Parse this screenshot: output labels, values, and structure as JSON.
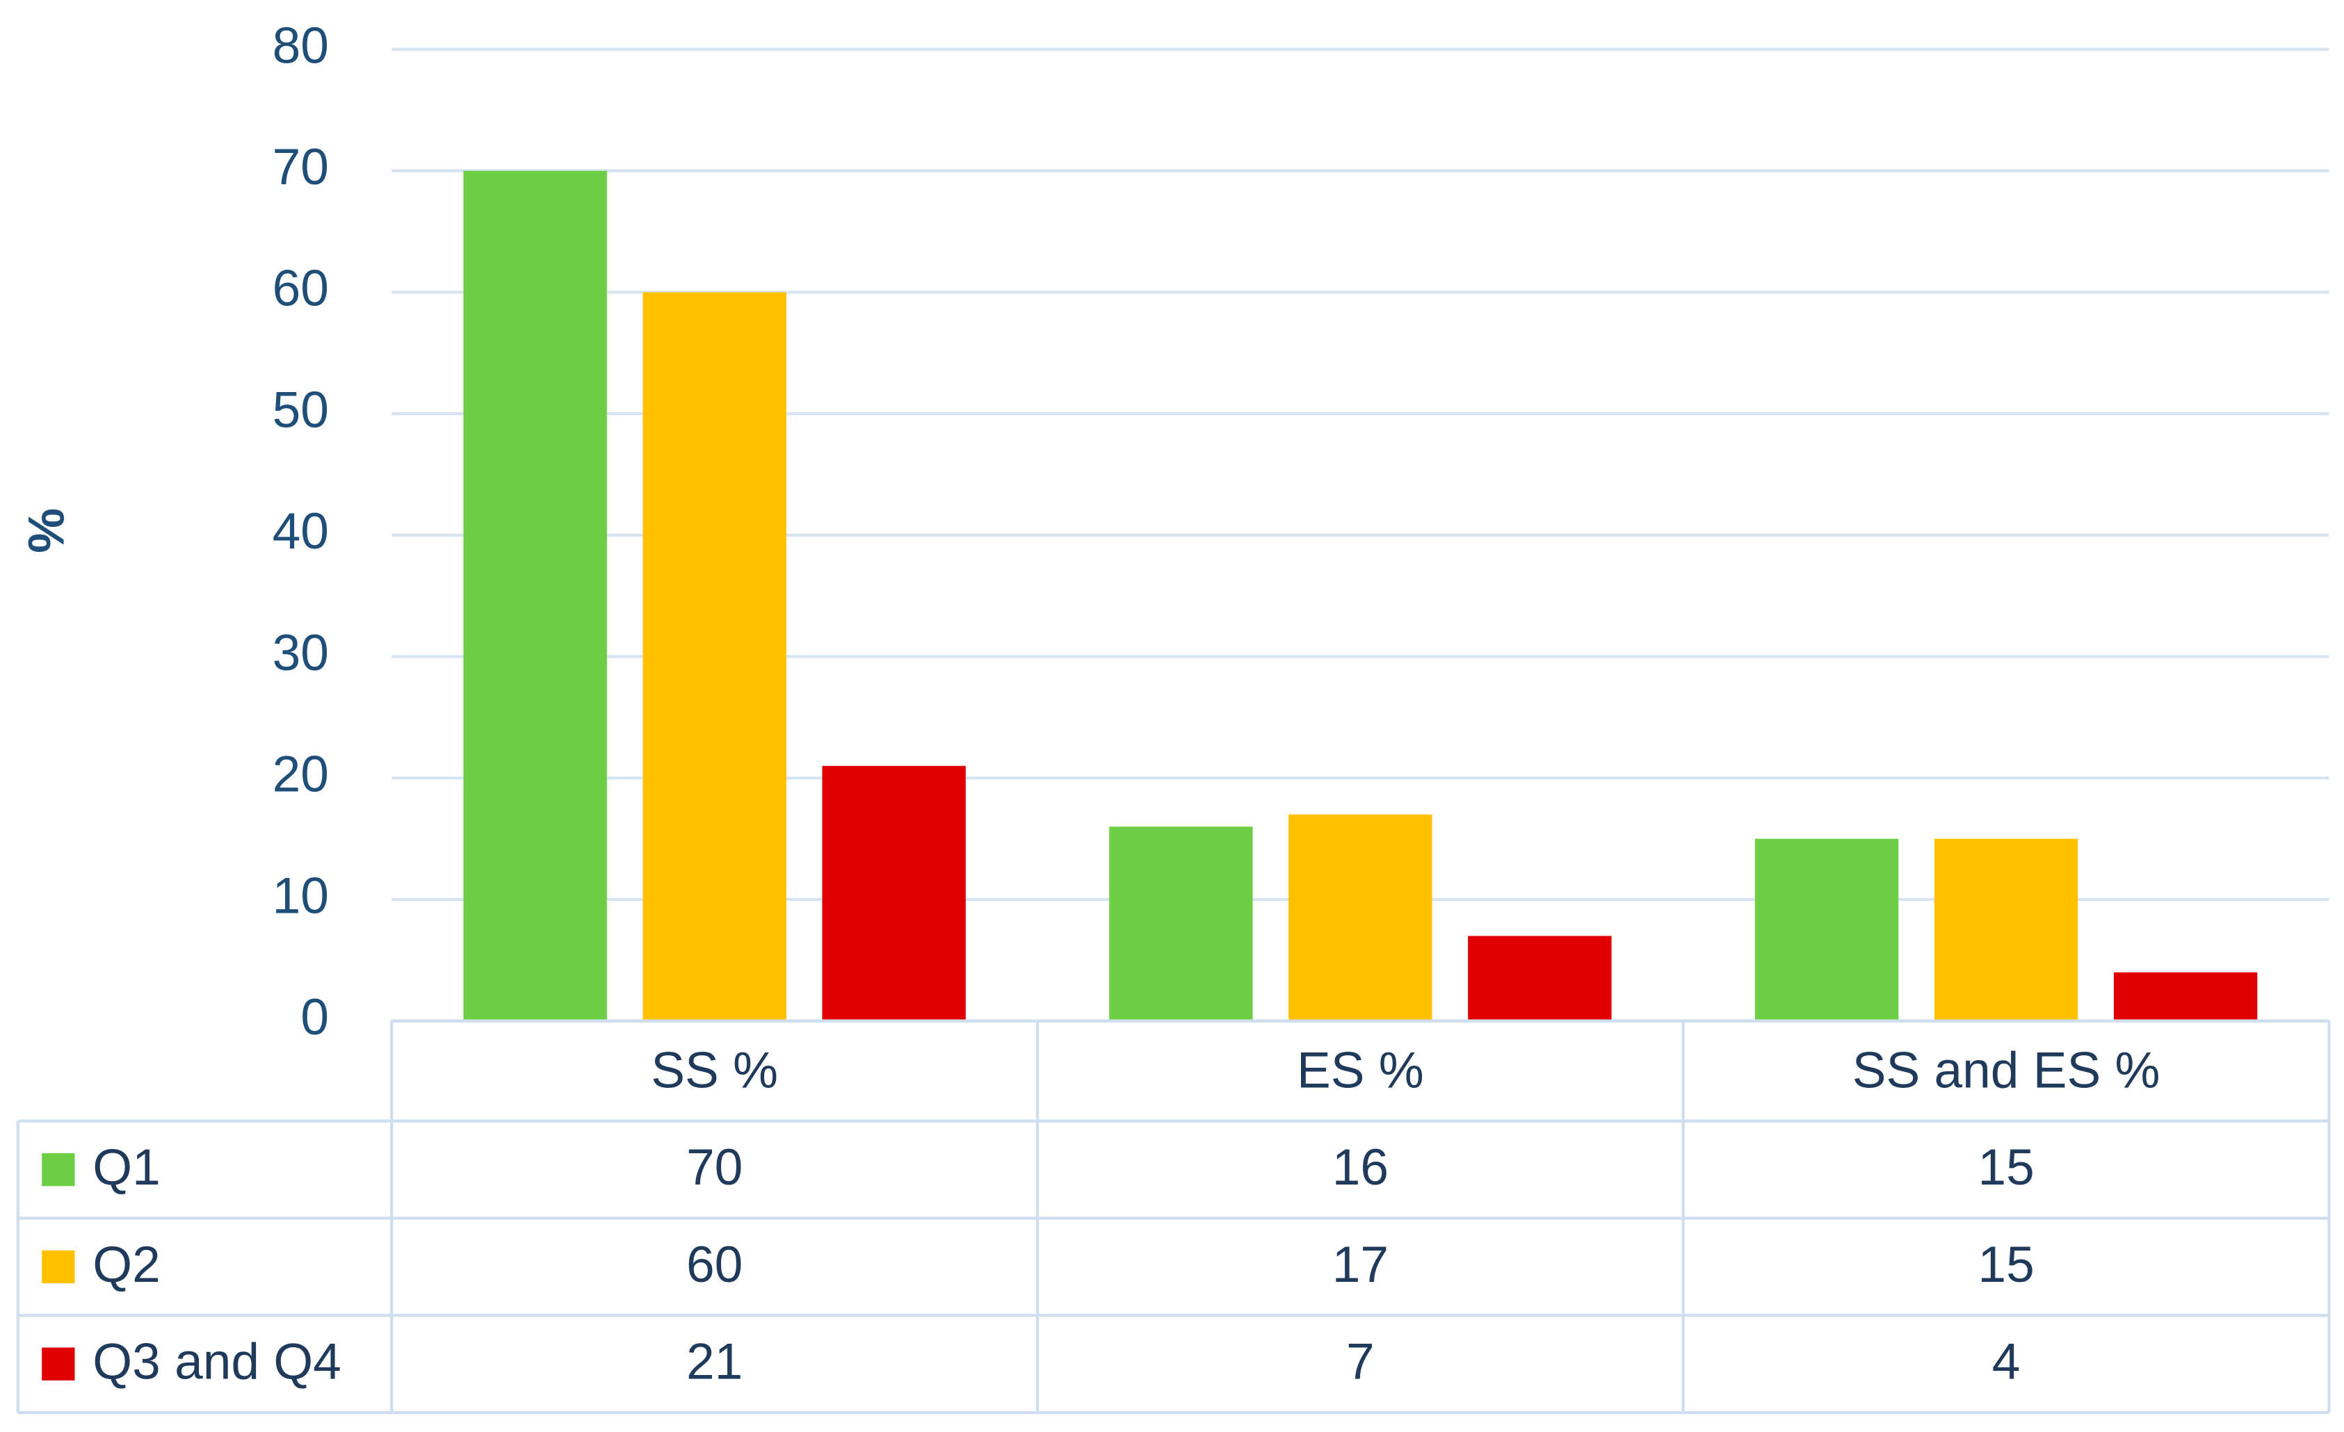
{
  "chart_data": {
    "type": "bar",
    "y_label": "%",
    "categories": [
      "SS %",
      "ES %",
      "SS and ES %"
    ],
    "series": [
      {
        "name": "Q1",
        "color": "#6dd044",
        "values": [
          70,
          16,
          15
        ]
      },
      {
        "name": "Q2",
        "color": "#ffc000",
        "values": [
          60,
          17,
          15
        ]
      },
      {
        "name": "Q3 and Q4",
        "color": "#e00000",
        "values": [
          21,
          7,
          4
        ]
      }
    ],
    "ylim": [
      0,
      80
    ],
    "yticks": [
      0,
      10,
      20,
      30,
      40,
      50,
      60,
      70,
      80
    ],
    "grid": true,
    "data_table": true
  }
}
